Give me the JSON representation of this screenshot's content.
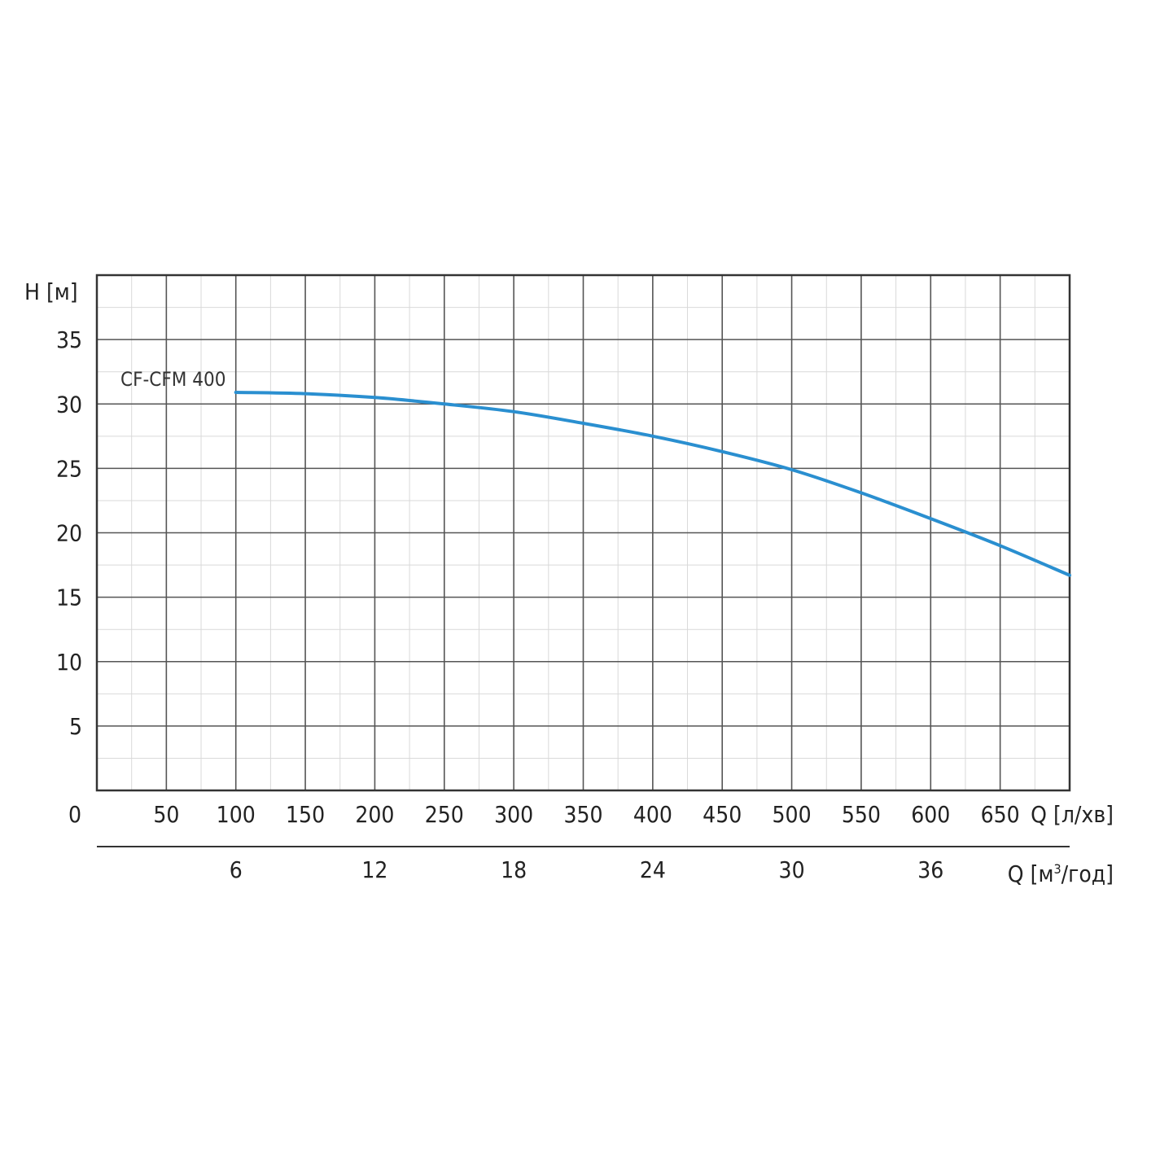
{
  "chart_data": {
    "type": "line",
    "title": "",
    "ylabel": "H [м]",
    "xlabel": "Q [л/хв]",
    "x2label_prefix": "Q [м",
    "x2label_sup": "3",
    "x2label_suffix": "/год]",
    "xlim": [
      0,
      700
    ],
    "ylim": [
      0,
      40
    ],
    "x_ticks": [
      0,
      50,
      100,
      150,
      200,
      250,
      300,
      350,
      400,
      450,
      500,
      550,
      600,
      650
    ],
    "y_ticks": [
      5,
      10,
      15,
      20,
      25,
      30,
      35
    ],
    "x2_ticks": [
      6,
      12,
      18,
      24,
      30,
      36
    ],
    "grid": true,
    "line_color": "#2a8fd0",
    "series": [
      {
        "name": "CF-CFM 400",
        "x": [
          100,
          150,
          200,
          250,
          300,
          350,
          400,
          450,
          500,
          550,
          600,
          650,
          700
        ],
        "y": [
          30.9,
          30.8,
          30.5,
          30.0,
          29.4,
          28.5,
          27.5,
          26.3,
          24.9,
          23.1,
          21.1,
          19.0,
          16.7
        ]
      }
    ]
  }
}
